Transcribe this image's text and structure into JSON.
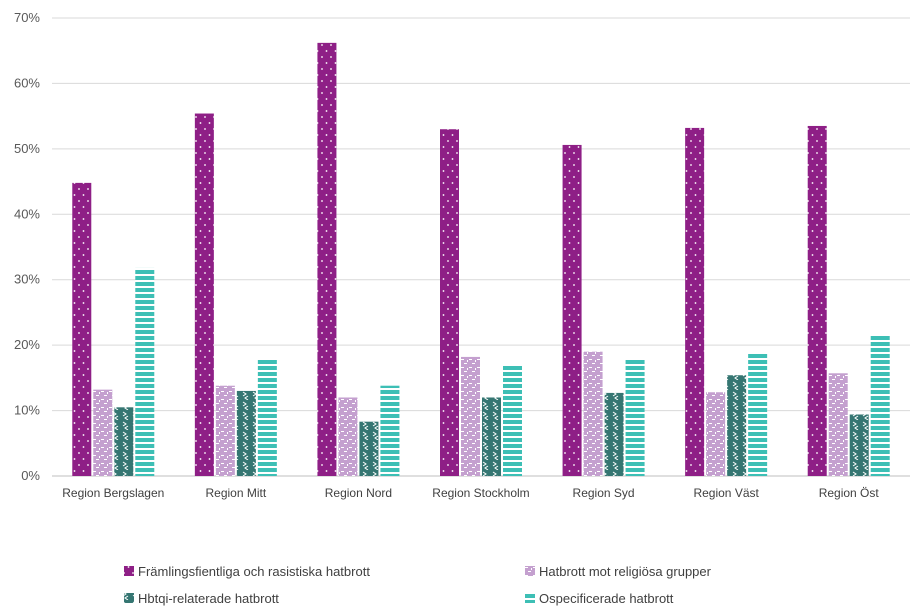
{
  "chart_data": {
    "type": "bar",
    "categories": [
      "Region Bergslagen",
      "Region Mitt",
      "Region Nord",
      "Region Stockholm",
      "Region Syd",
      "Region Väst",
      "Region Öst"
    ],
    "series": [
      {
        "name": "Främlingsfientliga och rasistiska hatbrott",
        "values": [
          44.8,
          55.4,
          66.2,
          53.0,
          50.6,
          53.2,
          53.5
        ],
        "color": "#8E1F86",
        "pattern": "dots"
      },
      {
        "name": "Hatbrott mot religiösa grupper",
        "values": [
          13.2,
          13.8,
          12.0,
          18.2,
          19.0,
          12.8,
          15.7
        ],
        "color": "#C4A0CF",
        "pattern": "dashes"
      },
      {
        "name": "Hbtqi-relaterade hatbrott",
        "values": [
          10.5,
          13.0,
          8.3,
          12.0,
          12.7,
          15.4,
          9.4
        ],
        "color": "#357672",
        "pattern": "chevrons"
      },
      {
        "name": "Ospecificerade hatbrott",
        "values": [
          31.8,
          18.0,
          13.8,
          16.9,
          17.9,
          18.8,
          21.7
        ],
        "color": "#3DBFB5",
        "pattern": "stripes"
      }
    ],
    "yticks": [
      "0%",
      "10%",
      "20%",
      "30%",
      "40%",
      "50%",
      "60%",
      "70%"
    ],
    "ylim": [
      0,
      70
    ],
    "grid": true,
    "legend_position": "bottom"
  }
}
